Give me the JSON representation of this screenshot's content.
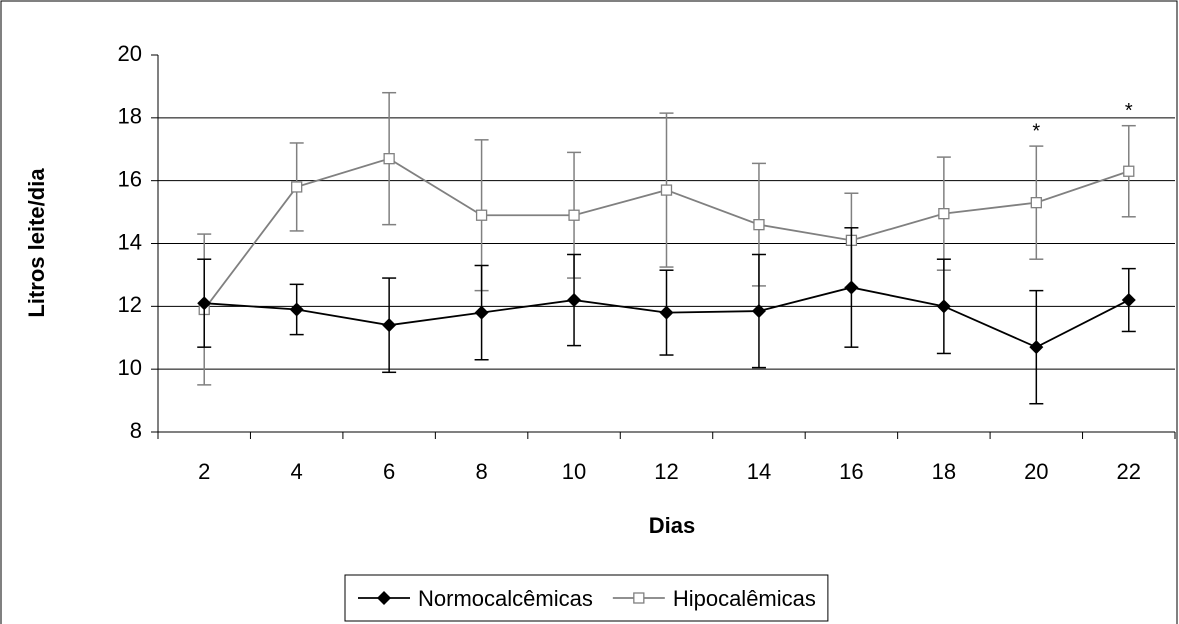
{
  "chart_data": {
    "type": "line",
    "x_label": "Dias",
    "y_label": "Litros leite/dia",
    "categories": [
      "2",
      "4",
      "6",
      "8",
      "10",
      "12",
      "14",
      "16",
      "18",
      "20",
      "22"
    ],
    "series": [
      {
        "name": "Normocalcêmicas",
        "color": "#000000",
        "marker": "diamond",
        "values": [
          12.1,
          11.9,
          11.4,
          11.8,
          12.2,
          11.8,
          11.85,
          12.6,
          12.0,
          10.7,
          12.2
        ],
        "errors": [
          1.4,
          0.8,
          1.5,
          1.5,
          1.45,
          1.35,
          1.8,
          1.9,
          1.5,
          1.8,
          1.0
        ]
      },
      {
        "name": "Hipocalêmicas",
        "color": "#808080",
        "marker": "square",
        "values": [
          11.9,
          15.8,
          16.7,
          14.9,
          14.9,
          15.7,
          14.6,
          14.1,
          14.95,
          15.3,
          16.3
        ],
        "errors": [
          2.4,
          1.4,
          2.1,
          2.4,
          2.0,
          2.45,
          1.95,
          1.5,
          1.8,
          1.8,
          1.45
        ]
      }
    ],
    "annotations": [
      null,
      null,
      null,
      null,
      null,
      null,
      null,
      null,
      null,
      "*",
      "*"
    ],
    "ylim": [
      8,
      20
    ],
    "yticks": [
      8,
      10,
      12,
      14,
      16,
      18,
      20
    ],
    "grid": true,
    "legend": "bottom"
  }
}
